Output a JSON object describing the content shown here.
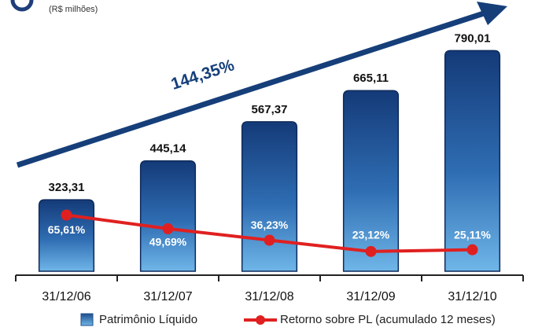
{
  "chart_data": {
    "type": "bar",
    "subtitle": "(R$ milhões)",
    "annotation": "144,35%",
    "categories": [
      "31/12/06",
      "31/12/07",
      "31/12/08",
      "31/12/09",
      "31/12/10"
    ],
    "series": [
      {
        "name": "Patrimônio Líquido",
        "type": "bar",
        "color": "#1f4e8c",
        "values": [
          323.31,
          445.14,
          567.37,
          665.11,
          790.01
        ],
        "value_labels": [
          "323,31",
          "445,14",
          "567,37",
          "665,11",
          "790,01"
        ]
      },
      {
        "name": "Retorno sobre PL (acumulado 12 meses)",
        "type": "line",
        "axis": "y2",
        "color": "#e02020",
        "values": [
          65.61,
          49.69,
          36.23,
          23.12,
          25.11
        ],
        "value_labels": [
          "65,61%",
          "49,69%",
          "36,23%",
          "23,12%",
          "25,11%"
        ]
      }
    ],
    "ylim": [
      100,
      850
    ],
    "y2lim": [
      0,
      280
    ]
  }
}
